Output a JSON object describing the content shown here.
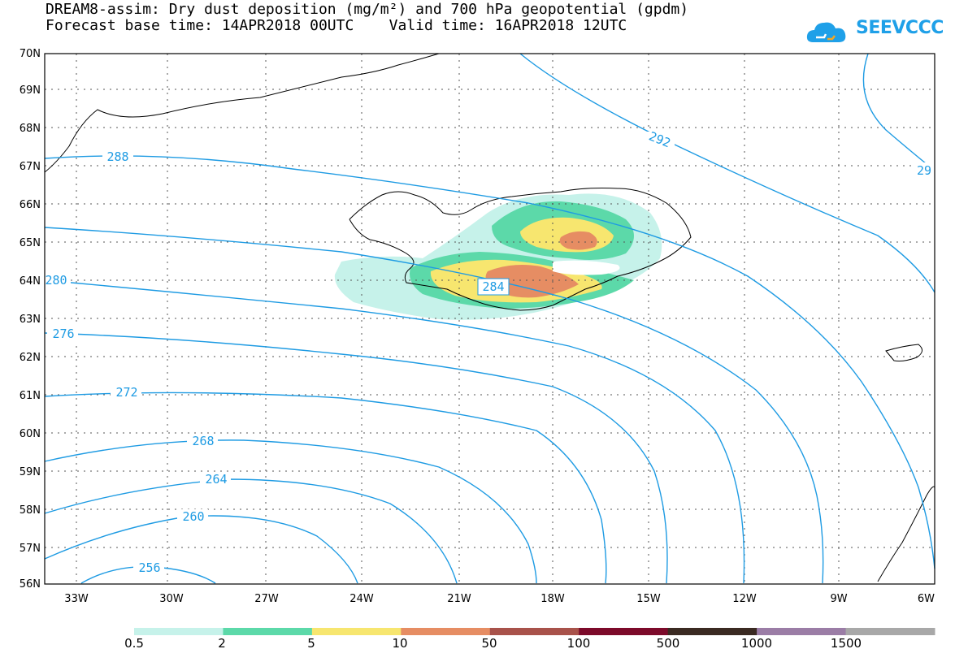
{
  "title": {
    "line1": "DREAM8-assim: Dry dust deposition (mg/m²) and 700 hPa geopotential (gpdm)",
    "line2": "Forecast base time: 14APR2018 00UTC    Valid time: 16APR2018 12UTC"
  },
  "logo": {
    "text": "SEEVCCC",
    "icon": "cloud-logo-icon",
    "color": "#1fa0e8"
  },
  "map": {
    "projection": "lat-lon",
    "lon_range": [
      -34,
      -6
    ],
    "lat_range": [
      56,
      70
    ],
    "grid": "dotted",
    "lat_labels": [
      "70N",
      "69N",
      "68N",
      "67N",
      "66N",
      "65N",
      "64N",
      "63N",
      "62N",
      "61N",
      "60N",
      "59N",
      "58N",
      "57N",
      "56N"
    ],
    "lon_labels": [
      "33W",
      "30W",
      "27W",
      "24W",
      "21W",
      "18W",
      "15W",
      "12W",
      "9W",
      "6W"
    ],
    "contour_labels": [
      "292",
      "29",
      "288",
      "284",
      "280",
      "276",
      "272",
      "268",
      "264",
      "260",
      "256"
    ],
    "contour_color": "#1e9be3"
  },
  "legend": {
    "colors": [
      "#c6f2ea",
      "#5cd9a9",
      "#f7e66f",
      "#e68d63",
      "#a8524a",
      "#7c0a2a",
      "#3a2a22",
      "#9b7da6",
      "#a8a8a8"
    ],
    "labels": [
      "0.5",
      "2",
      "5",
      "10",
      "50",
      "100",
      "500",
      "1000",
      "1500"
    ]
  }
}
